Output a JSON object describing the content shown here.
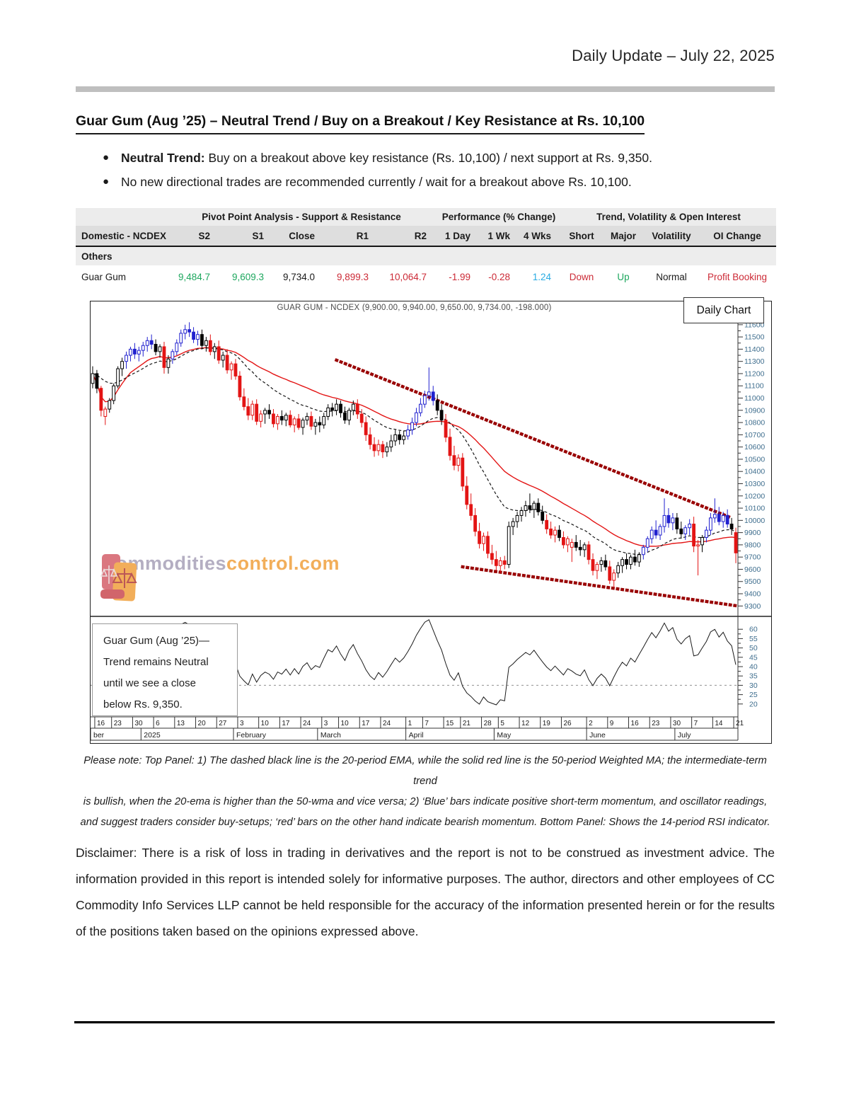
{
  "page": {
    "header_right": "Daily Update – July 22, 2025",
    "title": "Guar Gum (Aug  ’25) – Neutral Trend / Buy on a Breakout / Key Resistance at Rs. 10,100",
    "bullets": [
      {
        "bold": "Neutral Trend:",
        "text": " Buy on a breakout above key resistance (Rs. 10,100) / next support at Rs. 9,350."
      },
      {
        "bold": "",
        "text": "No new directional trades are recommended currently / wait for a breakout above Rs. 10,100."
      }
    ],
    "note_lines": [
      "Please note: Top Panel: 1) The dashed black line is the 20-period EMA, while the solid red line is the 50-period Weighted MA; the intermediate-term trend",
      "is bullish, when the 20-ema is higher than the 50-wma and vice versa; 2)  ‘Blue’  bars indicate positive short-term momentum, and oscillator readings,",
      "and suggest traders consider buy-setups;  ‘red’  bars on the other hand indicate bearish momentum. Bottom Panel: Shows the 14-period RSI indicator."
    ],
    "disclaimer": "Disclaimer: There is a risk of loss in trading in derivatives and the report is not to be construed as investment advice. The information provided in this report is intended solely for informative purposes. The author, directors and other employees of CC Commodity Info Services LLP cannot be held responsible for the accuracy of the information presented herein or for the results of the positions taken based on the opinions expressed above."
  },
  "table": {
    "group_headers": [
      "Pivot Point Analysis - Support & Resistance",
      "Performance (% Change)",
      "Trend, Volatility & Open Interest"
    ],
    "columns": [
      "Domestic - NCDEX",
      "S2",
      "S1",
      "Close",
      "R1",
      "R2",
      "1 Day",
      "1 Wk",
      "4 Wks",
      "Short",
      "Major",
      "Volatility",
      "OI Change"
    ],
    "section": "Others",
    "row": {
      "name": "Guar Gum",
      "s2": "9,484.7",
      "s1": "9,609.3",
      "close": "9,734.0",
      "r1": "9,899.3",
      "r2": "10,064.7",
      "d1": "-1.99",
      "w1": "-0.28",
      "w4": "1.24",
      "short": "Down",
      "major": "Up",
      "volatility": "Normal",
      "oi": "Profit Booking"
    },
    "colors": {
      "positive": "#1da75e",
      "negative": "#cc2a36",
      "highlight": "#29abe2",
      "neutral": "#1a1a1a"
    }
  },
  "chart_data": {
    "type": "candlestick+rsi",
    "title": "GUAR GUM - NCDEX (9,900.00, 9,940.00, 9,650.00, 9,734.00, -198.000)",
    "panel_label": "Daily Chart",
    "watermark": {
      "part1": "commodities",
      "part2": "control.com"
    },
    "annotation_lines": [
      "Guar Gum (Aug  ’25)—",
      "Trend remains Neutral",
      "until we see a close",
      "below Rs. 9,350."
    ],
    "price_axis": {
      "min": 9300,
      "max": 11600,
      "step": 100,
      "top_price": 11790,
      "bottom_price": 9215
    },
    "rsi_axis": {
      "min": 20,
      "max": 60,
      "step": 5,
      "ref_line": 30
    },
    "overlays": {
      "ema_period": 20,
      "wma_period": 50,
      "rsi_period": 14
    },
    "colors": {
      "bullish_bar": "#2020cf",
      "bearish_bar": "#e31414",
      "neutral_bar": "#000000",
      "wma_line": "#e31414",
      "ema_line": "#151515",
      "trend_line": "#990000",
      "axis_label": "#3f6e8e",
      "day_label": "#1a1a1a",
      "rsi_line": "#1a1a1a",
      "rsi_ref": "#909090"
    },
    "trend_lines": [
      {
        "from": [
          58,
          11310
        ],
        "to": [
          152,
          10020
        ]
      },
      {
        "from": [
          88,
          9620
        ],
        "to": [
          153.5,
          9300
        ]
      }
    ],
    "x_ticks": [
      [
        1,
        "16"
      ],
      [
        5,
        "23"
      ],
      [
        10,
        "30"
      ],
      [
        15,
        "6"
      ],
      [
        20,
        "13"
      ],
      [
        25,
        "20"
      ],
      [
        30,
        "27"
      ],
      [
        35,
        "3"
      ],
      [
        40,
        "10"
      ],
      [
        45,
        "17"
      ],
      [
        50,
        "24"
      ],
      [
        55,
        "3"
      ],
      [
        59,
        "10"
      ],
      [
        64,
        "17"
      ],
      [
        69,
        "24"
      ],
      [
        75,
        "1"
      ],
      [
        79,
        "7"
      ],
      [
        84,
        "15"
      ],
      [
        88,
        "21"
      ],
      [
        93,
        "28"
      ],
      [
        97,
        "5"
      ],
      [
        102,
        "12"
      ],
      [
        107,
        "19"
      ],
      [
        112,
        "26"
      ],
      [
        118,
        "2"
      ],
      [
        123,
        "9"
      ],
      [
        128,
        "16"
      ],
      [
        133,
        "23"
      ],
      [
        138,
        "30"
      ],
      [
        143,
        "7"
      ],
      [
        148,
        "14"
      ],
      [
        153,
        "21"
      ]
    ],
    "months": [
      {
        "label": "ber",
        "start": 0
      },
      {
        "label": "2025",
        "start": 12
      },
      {
        "label": "February",
        "start": 34
      },
      {
        "label": "March",
        "start": 54
      },
      {
        "label": "April",
        "start": 75
      },
      {
        "label": "May",
        "start": 96
      },
      {
        "label": "June",
        "start": 118
      },
      {
        "label": "July",
        "start": 139
      }
    ],
    "candles": [
      [
        11120,
        11260,
        11080,
        11200,
        "k"
      ],
      [
        11200,
        11230,
        11040,
        11080,
        "k"
      ],
      [
        11080,
        11100,
        10850,
        10900,
        "r"
      ],
      [
        10850,
        10930,
        10780,
        10910,
        "r"
      ],
      [
        10910,
        11000,
        10880,
        10980,
        "k"
      ],
      [
        10980,
        11120,
        10950,
        11100,
        "k"
      ],
      [
        11100,
        11260,
        11080,
        11240,
        "k"
      ],
      [
        11240,
        11330,
        11180,
        11300,
        "k"
      ],
      [
        11300,
        11380,
        11240,
        11350,
        "b"
      ],
      [
        11350,
        11420,
        11300,
        11400,
        "b"
      ],
      [
        11400,
        11450,
        11320,
        11360,
        "b"
      ],
      [
        11360,
        11420,
        11300,
        11390,
        "b"
      ],
      [
        11390,
        11460,
        11340,
        11430,
        "b"
      ],
      [
        11430,
        11500,
        11380,
        11470,
        "b"
      ],
      [
        11470,
        11520,
        11400,
        11440,
        "b"
      ],
      [
        11440,
        11480,
        11350,
        11380,
        "k"
      ],
      [
        11380,
        11440,
        11330,
        11420,
        "k"
      ],
      [
        11420,
        11460,
        11200,
        11250,
        "r"
      ],
      [
        11250,
        11350,
        11200,
        11320,
        "k"
      ],
      [
        11320,
        11400,
        11280,
        11380,
        "b"
      ],
      [
        11380,
        11480,
        11350,
        11450,
        "b"
      ],
      [
        11450,
        11560,
        11420,
        11530,
        "b"
      ],
      [
        11530,
        11600,
        11480,
        11560,
        "b"
      ],
      [
        11560,
        11620,
        11500,
        11540,
        "b"
      ],
      [
        11540,
        11580,
        11450,
        11480,
        "b"
      ],
      [
        11480,
        11550,
        11430,
        11520,
        "b"
      ],
      [
        11520,
        11560,
        11400,
        11430,
        "k"
      ],
      [
        11430,
        11500,
        11380,
        11470,
        "k"
      ],
      [
        11470,
        11520,
        11350,
        11380,
        "r"
      ],
      [
        11380,
        11450,
        11320,
        11420,
        "k"
      ],
      [
        11420,
        11470,
        11280,
        11310,
        "r"
      ],
      [
        11310,
        11380,
        11250,
        11350,
        "k"
      ],
      [
        11350,
        11400,
        11200,
        11230,
        "r"
      ],
      [
        11230,
        11300,
        11150,
        11280,
        "r"
      ],
      [
        11280,
        11320,
        11150,
        11180,
        "r"
      ],
      [
        11180,
        11220,
        10980,
        11010,
        "r"
      ],
      [
        11010,
        11080,
        10900,
        10930,
        "r"
      ],
      [
        10930,
        11000,
        10820,
        10860,
        "r"
      ],
      [
        10860,
        10980,
        10820,
        10950,
        "r"
      ],
      [
        10950,
        10990,
        10780,
        10810,
        "r"
      ],
      [
        10810,
        10900,
        10760,
        10870,
        "r"
      ],
      [
        10870,
        10920,
        10790,
        10900,
        "k"
      ],
      [
        10900,
        10950,
        10830,
        10870,
        "k"
      ],
      [
        10870,
        10910,
        10760,
        10790,
        "r"
      ],
      [
        10790,
        10870,
        10740,
        10850,
        "r"
      ],
      [
        10850,
        10900,
        10780,
        10820,
        "k"
      ],
      [
        10820,
        10880,
        10770,
        10860,
        "k"
      ],
      [
        10860,
        10900,
        10760,
        10780,
        "r"
      ],
      [
        10780,
        10850,
        10720,
        10830,
        "r"
      ],
      [
        10830,
        10870,
        10740,
        10760,
        "r"
      ],
      [
        10760,
        10840,
        10700,
        10820,
        "k"
      ],
      [
        10820,
        10880,
        10780,
        10850,
        "k"
      ],
      [
        10850,
        10890,
        10740,
        10770,
        "r"
      ],
      [
        10770,
        10830,
        10700,
        10800,
        "k"
      ],
      [
        10800,
        10850,
        10720,
        10780,
        "k"
      ],
      [
        10780,
        10880,
        10750,
        10850,
        "k"
      ],
      [
        10850,
        10950,
        10820,
        10920,
        "k"
      ],
      [
        10920,
        10960,
        10850,
        10900,
        "k"
      ],
      [
        10900,
        10990,
        10860,
        10950,
        "k"
      ],
      [
        10950,
        10980,
        10840,
        10880,
        "k"
      ],
      [
        10880,
        10930,
        10790,
        10820,
        "k"
      ],
      [
        10820,
        10920,
        10780,
        10900,
        "k"
      ],
      [
        10900,
        10980,
        10860,
        10950,
        "k"
      ],
      [
        10950,
        10990,
        10830,
        10870,
        "r"
      ],
      [
        10870,
        10910,
        10760,
        10800,
        "r"
      ],
      [
        10800,
        10850,
        10650,
        10700,
        "r"
      ],
      [
        10700,
        10760,
        10580,
        10620,
        "r"
      ],
      [
        10620,
        10680,
        10520,
        10570,
        "r"
      ],
      [
        10570,
        10660,
        10530,
        10620,
        "r"
      ],
      [
        10620,
        10650,
        10510,
        10560,
        "r"
      ],
      [
        10560,
        10640,
        10520,
        10600,
        "k"
      ],
      [
        10600,
        10700,
        10560,
        10650,
        "k"
      ],
      [
        10650,
        10740,
        10610,
        10700,
        "k"
      ],
      [
        10700,
        10730,
        10620,
        10660,
        "k"
      ],
      [
        10660,
        10730,
        10620,
        10690,
        "k"
      ],
      [
        10690,
        10780,
        10660,
        10740,
        "b"
      ],
      [
        10740,
        10840,
        10700,
        10800,
        "b"
      ],
      [
        10800,
        10920,
        10770,
        10880,
        "b"
      ],
      [
        10880,
        11000,
        10850,
        10950,
        "b"
      ],
      [
        10950,
        11060,
        10920,
        11020,
        "b"
      ],
      [
        11020,
        11250,
        10980,
        11050,
        "b"
      ],
      [
        11050,
        11100,
        10940,
        10980,
        "b"
      ],
      [
        10980,
        11030,
        10860,
        10900,
        "k"
      ],
      [
        10900,
        10950,
        10780,
        10820,
        "k"
      ],
      [
        10820,
        10870,
        10640,
        10680,
        "r"
      ],
      [
        10680,
        10750,
        10490,
        10530,
        "r"
      ],
      [
        10530,
        10610,
        10410,
        10450,
        "r"
      ],
      [
        10450,
        10540,
        10400,
        10510,
        "r"
      ],
      [
        10510,
        10550,
        10240,
        10280,
        "r"
      ],
      [
        10280,
        10360,
        10090,
        10130,
        "r"
      ],
      [
        10130,
        10220,
        10000,
        10040,
        "r"
      ],
      [
        10040,
        10100,
        9870,
        9910,
        "r"
      ],
      [
        9910,
        9980,
        9770,
        9810,
        "r"
      ],
      [
        9810,
        9900,
        9750,
        9870,
        "r"
      ],
      [
        9870,
        9910,
        9690,
        9730,
        "r"
      ],
      [
        9730,
        9800,
        9640,
        9680,
        "r"
      ],
      [
        9680,
        9750,
        9590,
        9630,
        "r"
      ],
      [
        9630,
        9700,
        9570,
        9670,
        "r"
      ],
      [
        9670,
        9710,
        9600,
        9640,
        "r"
      ],
      [
        9640,
        9990,
        9610,
        9950,
        "k"
      ],
      [
        9950,
        10020,
        9880,
        9990,
        "k"
      ],
      [
        9990,
        10070,
        9940,
        10040,
        "k"
      ],
      [
        10040,
        10110,
        9990,
        10080,
        "k"
      ],
      [
        10080,
        10160,
        10030,
        10120,
        "k"
      ],
      [
        10120,
        10220,
        10060,
        10090,
        "k"
      ],
      [
        10090,
        10160,
        10020,
        10140,
        "k"
      ],
      [
        10140,
        10180,
        10040,
        10070,
        "k"
      ],
      [
        10070,
        10120,
        9970,
        10000,
        "k"
      ],
      [
        10000,
        10050,
        9890,
        9930,
        "r"
      ],
      [
        9930,
        9990,
        9850,
        9880,
        "r"
      ],
      [
        9880,
        9950,
        9820,
        9920,
        "r"
      ],
      [
        9920,
        9960,
        9830,
        9860,
        "k"
      ],
      [
        9860,
        9910,
        9770,
        9800,
        "r"
      ],
      [
        9800,
        9870,
        9740,
        9850,
        "r"
      ],
      [
        9780,
        9850,
        9660,
        9820,
        "r"
      ],
      [
        9820,
        9880,
        9750,
        9780,
        "k"
      ],
      [
        9780,
        9840,
        9710,
        9760,
        "k"
      ],
      [
        9760,
        9820,
        9700,
        9800,
        "k"
      ],
      [
        9800,
        9830,
        9640,
        9680,
        "r"
      ],
      [
        9680,
        9730,
        9550,
        9590,
        "r"
      ],
      [
        9590,
        9660,
        9520,
        9640,
        "r"
      ],
      [
        9640,
        9700,
        9580,
        9670,
        "k"
      ],
      [
        9670,
        9720,
        9590,
        9620,
        "k"
      ],
      [
        9620,
        9670,
        9480,
        9510,
        "r"
      ],
      [
        9510,
        9600,
        9450,
        9570,
        "r"
      ],
      [
        9570,
        9660,
        9530,
        9630,
        "k"
      ],
      [
        9630,
        9700,
        9570,
        9680,
        "k"
      ],
      [
        9680,
        9730,
        9600,
        9640,
        "k"
      ],
      [
        9640,
        9720,
        9600,
        9700,
        "k"
      ],
      [
        9700,
        9760,
        9630,
        9660,
        "k"
      ],
      [
        9660,
        9740,
        9620,
        9720,
        "k"
      ],
      [
        9720,
        9800,
        9680,
        9780,
        "b"
      ],
      [
        9780,
        9870,
        9740,
        9850,
        "b"
      ],
      [
        9850,
        9950,
        9810,
        9920,
        "b"
      ],
      [
        9920,
        10000,
        9850,
        9880,
        "b"
      ],
      [
        9880,
        9970,
        9840,
        9950,
        "b"
      ],
      [
        9950,
        10180,
        9900,
        10040,
        "b"
      ],
      [
        10040,
        10100,
        9940,
        9980,
        "b"
      ],
      [
        9980,
        10060,
        9920,
        10020,
        "b"
      ],
      [
        10020,
        10060,
        9890,
        9930,
        "k"
      ],
      [
        9930,
        9990,
        9850,
        9890,
        "k"
      ],
      [
        9890,
        9960,
        9840,
        9940,
        "b"
      ],
      [
        9940,
        10010,
        9880,
        9970,
        "b"
      ],
      [
        9970,
        10030,
        9740,
        9790,
        "r"
      ],
      [
        9790,
        9840,
        9550,
        9800,
        "r"
      ],
      [
        9800,
        9880,
        9740,
        9860,
        "k"
      ],
      [
        9860,
        9950,
        9820,
        9920,
        "b"
      ],
      [
        9920,
        10060,
        9880,
        10020,
        "b"
      ],
      [
        10020,
        10180,
        9980,
        10050,
        "b"
      ],
      [
        10050,
        10110,
        9960,
        9990,
        "b"
      ],
      [
        9990,
        10070,
        9940,
        10040,
        "b"
      ],
      [
        10040,
        10090,
        9940,
        9970,
        "b"
      ],
      [
        9970,
        10020,
        9880,
        9930,
        "k"
      ],
      [
        9900,
        9940,
        9650,
        9734,
        "r"
      ]
    ]
  }
}
